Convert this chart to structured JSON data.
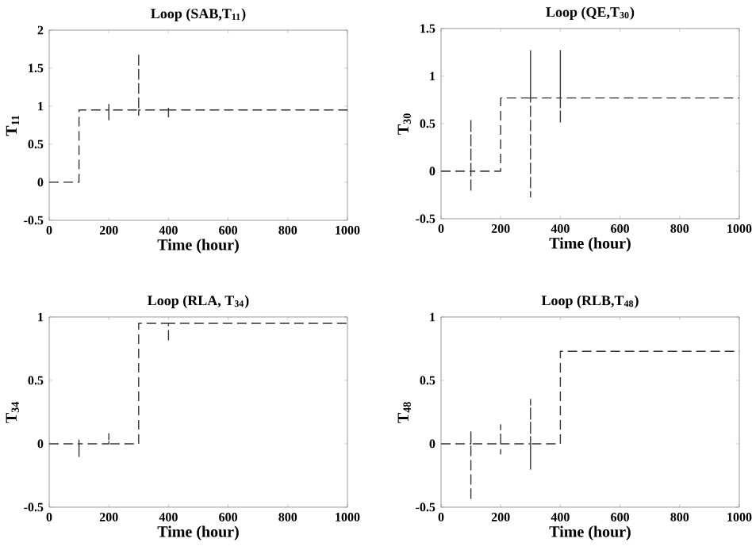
{
  "chart_data": [
    {
      "type": "line",
      "title": "Loop (SAB,T$_{11}$)",
      "xlabel": "Time (hour)",
      "ylabel": "T$_{11}$",
      "line_style": "dashed",
      "color": "#333333",
      "xlim": [
        0,
        1000
      ],
      "xticks": [
        0,
        200,
        400,
        600,
        800,
        1000
      ],
      "ylim": [
        -0.5,
        2
      ],
      "yticks": [
        -0.5,
        0,
        0.5,
        1,
        1.5,
        2
      ],
      "x": [
        0,
        100,
        100,
        200,
        200,
        200,
        200,
        300,
        300,
        300,
        300,
        400,
        400,
        400,
        400,
        1000
      ],
      "values": [
        0,
        0,
        0.95,
        0.95,
        1.05,
        0.82,
        0.95,
        0.95,
        1.7,
        0.88,
        0.95,
        0.95,
        1.0,
        0.86,
        0.95,
        0.95
      ]
    },
    {
      "type": "line",
      "title": "Loop (QE,T$_{30}$)",
      "xlabel": "Time (hour)",
      "ylabel": "T$_{30}$",
      "line_style": "dashed",
      "color": "#333333",
      "xlim": [
        0,
        1000
      ],
      "xticks": [
        0,
        200,
        400,
        600,
        800,
        1000
      ],
      "ylim": [
        -0.5,
        1.5
      ],
      "yticks": [
        -0.5,
        0,
        0.5,
        1,
        1.5
      ],
      "x": [
        0,
        100,
        100,
        100,
        100,
        200,
        200,
        300,
        300,
        300,
        300,
        400,
        400,
        400,
        400,
        1000
      ],
      "values": [
        0,
        0,
        0.55,
        -0.22,
        0,
        0,
        0.77,
        0.77,
        1.27,
        -0.27,
        0.77,
        0.77,
        1.27,
        0.5,
        0.77,
        0.77
      ]
    },
    {
      "type": "line",
      "title": "Loop (RLA, T$_{34}$)",
      "xlabel": "Time (hour)",
      "ylabel": "T$_{34}$",
      "line_style": "dashed",
      "color": "#333333",
      "xlim": [
        0,
        1000
      ],
      "xticks": [
        0,
        200,
        400,
        600,
        800,
        1000
      ],
      "ylim": [
        -0.5,
        1
      ],
      "yticks": [
        -0.5,
        0,
        0.5,
        1
      ],
      "x": [
        0,
        100,
        100,
        100,
        100,
        200,
        200,
        200,
        300,
        300,
        400,
        400,
        400,
        1000
      ],
      "values": [
        0,
        0,
        0.03,
        -0.1,
        0,
        0,
        0.08,
        0,
        0,
        0.95,
        0.95,
        0.8,
        0.95,
        0.95
      ]
    },
    {
      "type": "line",
      "title": "Loop (RLB,T$_{48}$)",
      "xlabel": "Time (hour)",
      "ylabel": "T$_{48}$",
      "line_style": "dashed",
      "color": "#333333",
      "xlim": [
        0,
        1000
      ],
      "xticks": [
        0,
        200,
        400,
        600,
        800,
        1000
      ],
      "ylim": [
        -0.5,
        1
      ],
      "yticks": [
        -0.5,
        0,
        0.5,
        1
      ],
      "x": [
        0,
        100,
        100,
        100,
        100,
        200,
        200,
        200,
        200,
        300,
        300,
        300,
        300,
        400,
        400,
        1000
      ],
      "values": [
        0,
        0,
        0.1,
        -0.45,
        0,
        0,
        0.15,
        -0.08,
        0,
        0,
        0.35,
        -0.2,
        0,
        0,
        0.73,
        0.73
      ]
    }
  ]
}
